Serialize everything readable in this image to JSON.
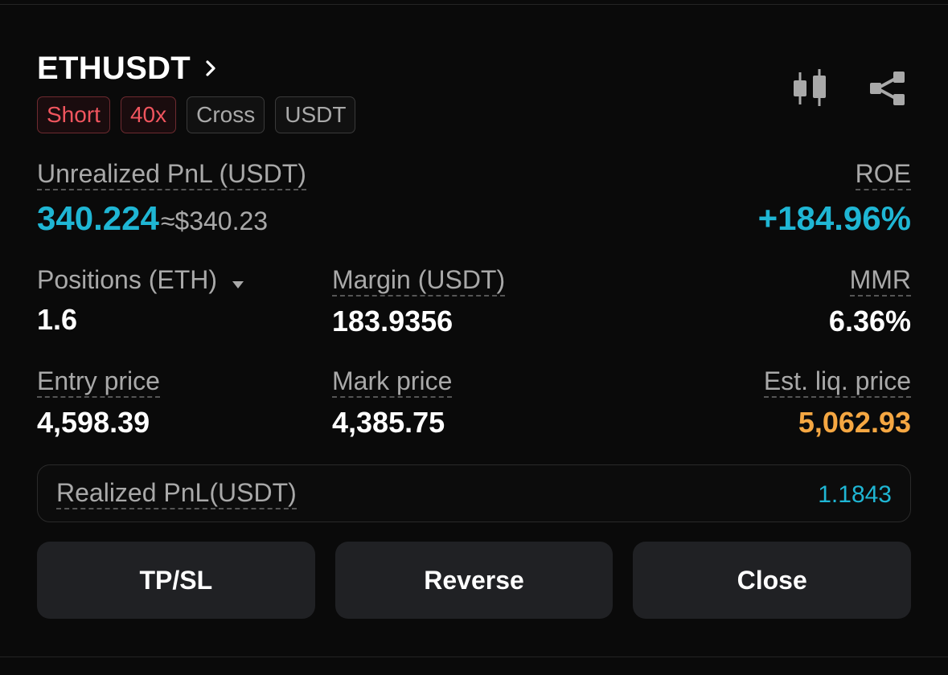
{
  "position": {
    "symbol": "ETHUSDT",
    "tags": {
      "side": "Short",
      "leverage": "40x",
      "margin_mode": "Cross",
      "settle": "USDT"
    },
    "unrealized_pnl": {
      "label": "Unrealized PnL (USDT)",
      "value": "340.224",
      "approx": "≈$340.23"
    },
    "roe": {
      "label": "ROE",
      "value": "+184.96%"
    },
    "positions": {
      "label": "Positions (ETH)",
      "value": "1.6"
    },
    "margin": {
      "label": "Margin (USDT)",
      "value": "183.9356"
    },
    "mmr": {
      "label": "MMR",
      "value": "6.36%"
    },
    "entry_price": {
      "label": "Entry price",
      "value": "4,598.39"
    },
    "mark_price": {
      "label": "Mark price",
      "value": "4,385.75"
    },
    "est_liq_price": {
      "label": "Est. liq. price",
      "value": "5,062.93"
    },
    "realized_pnl": {
      "label": "Realized PnL(USDT)",
      "value": "1.1843"
    }
  },
  "actions": {
    "tpsl": "TP/SL",
    "reverse": "Reverse",
    "close": "Close"
  },
  "icons": {
    "chart": "candlestick-chart-icon",
    "share": "share-icon",
    "symbol_chevron": "chevron-right-icon",
    "positions_dropdown": "caret-down-icon"
  },
  "colors": {
    "profit": "#1fb6d4",
    "short": "#f0555e",
    "liquidation": "#f5a742"
  }
}
